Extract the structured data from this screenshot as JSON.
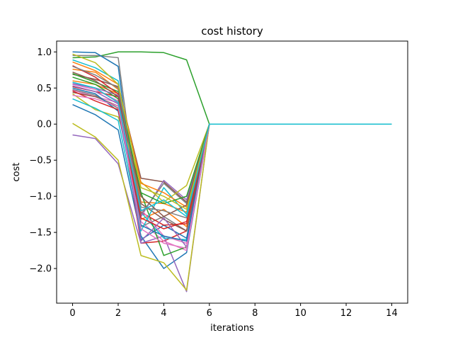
{
  "chart_data": {
    "type": "line",
    "title": "cost history",
    "xlabel": "iterations",
    "ylabel": "cost",
    "xlim": [
      -0.7,
      14.7
    ],
    "ylim": [
      -2.48,
      1.15
    ],
    "xticks": [
      0,
      2,
      4,
      6,
      8,
      10,
      12,
      14
    ],
    "xtick_labels": [
      "0",
      "2",
      "4",
      "6",
      "8",
      "10",
      "12",
      "14"
    ],
    "yticks": [
      -2.0,
      -1.5,
      -1.0,
      -0.5,
      0.0,
      0.5,
      1.0
    ],
    "ytick_labels": [
      "−2.0",
      "−1.5",
      "−1.0",
      "−0.5",
      "0.0",
      "0.5",
      "1.0"
    ],
    "grid": false,
    "legend": "none",
    "x": [
      0,
      1,
      2,
      3,
      4,
      5,
      6,
      7,
      8,
      9,
      10,
      11,
      12,
      13,
      14
    ],
    "series": [
      {
        "color": "#1f77b4",
        "values": [
          0.27,
          0.13,
          -0.08,
          -1.55,
          -2.0,
          -1.78,
          0,
          0,
          0,
          0,
          0,
          0,
          0,
          0,
          0
        ]
      },
      {
        "color": "#ff7f0e",
        "values": [
          0.76,
          0.72,
          0.48,
          -1.32,
          -1.18,
          -1.42,
          0,
          0,
          0,
          0,
          0,
          0,
          0,
          0,
          0
        ]
      },
      {
        "color": "#2ca02c",
        "values": [
          0.92,
          0.93,
          1.0,
          1.0,
          0.99,
          0.89,
          0,
          0,
          0,
          0,
          0,
          0,
          0,
          0,
          0
        ]
      },
      {
        "color": "#d62728",
        "values": [
          0.52,
          0.45,
          0.38,
          -1.65,
          -1.62,
          -1.48,
          0,
          0,
          0,
          0,
          0,
          0,
          0,
          0,
          0
        ]
      },
      {
        "color": "#9467bd",
        "values": [
          -0.15,
          -0.2,
          -0.55,
          -1.65,
          -1.55,
          -2.32,
          0,
          0,
          0,
          0,
          0,
          0,
          0,
          0,
          0
        ]
      },
      {
        "color": "#8c564b",
        "values": [
          0.69,
          0.62,
          0.52,
          -0.75,
          -0.8,
          -1.08,
          0,
          0,
          0,
          0,
          0,
          0,
          0,
          0,
          0
        ]
      },
      {
        "color": "#e377c2",
        "values": [
          0.47,
          0.38,
          0.3,
          -1.35,
          -1.62,
          -1.75,
          0,
          0,
          0,
          0,
          0,
          0,
          0,
          0,
          0
        ]
      },
      {
        "color": "#7f7f7f",
        "values": [
          0.95,
          0.95,
          0.92,
          -1.42,
          -1.28,
          -1.48,
          0,
          0,
          0,
          0,
          0,
          0,
          0,
          0,
          0
        ]
      },
      {
        "color": "#bcbd22",
        "values": [
          0.01,
          -0.18,
          -0.5,
          -1.82,
          -1.92,
          -2.3,
          0,
          0,
          0,
          0,
          0,
          0,
          0,
          0,
          0
        ]
      },
      {
        "color": "#17becf",
        "values": [
          0.89,
          0.78,
          0.6,
          -1.22,
          -1.58,
          -1.6,
          0,
          0,
          0,
          0,
          0,
          0,
          0,
          0,
          0
        ]
      },
      {
        "color": "#1f77b4",
        "values": [
          1.0,
          0.99,
          0.8,
          -1.6,
          -1.4,
          -1.58,
          0,
          0,
          0,
          0,
          0,
          0,
          0,
          0,
          0
        ]
      },
      {
        "color": "#ff7f0e",
        "values": [
          0.6,
          0.55,
          0.42,
          -1.08,
          -1.1,
          -1.22,
          0,
          0,
          0,
          0,
          0,
          0,
          0,
          0,
          0
        ]
      },
      {
        "color": "#2ca02c",
        "values": [
          0.7,
          0.58,
          0.45,
          -0.95,
          -1.82,
          -1.7,
          0,
          0,
          0,
          0,
          0,
          0,
          0,
          0,
          0
        ]
      },
      {
        "color": "#d62728",
        "values": [
          0.81,
          0.65,
          0.42,
          -1.22,
          -1.4,
          -1.38,
          0,
          0,
          0,
          0,
          0,
          0,
          0,
          0,
          0
        ]
      },
      {
        "color": "#9467bd",
        "values": [
          0.53,
          0.45,
          0.28,
          -1.28,
          -0.78,
          -1.05,
          0,
          0,
          0,
          0,
          0,
          0,
          0,
          0,
          0
        ]
      },
      {
        "color": "#8c564b",
        "values": [
          0.44,
          0.38,
          0.25,
          -1.1,
          -1.32,
          -1.48,
          0,
          0,
          0,
          0,
          0,
          0,
          0,
          0,
          0
        ]
      },
      {
        "color": "#e377c2",
        "values": [
          0.55,
          0.48,
          0.32,
          -1.18,
          -1.55,
          -1.65,
          0,
          0,
          0,
          0,
          0,
          0,
          0,
          0,
          0
        ]
      },
      {
        "color": "#7f7f7f",
        "values": [
          0.48,
          0.4,
          0.22,
          -1.25,
          -0.82,
          -1.1,
          0,
          0,
          0,
          0,
          0,
          0,
          0,
          0,
          0
        ]
      },
      {
        "color": "#bcbd22",
        "values": [
          0.42,
          0.2,
          0.1,
          -0.8,
          -1.08,
          -0.85,
          0,
          0,
          0,
          0,
          0,
          0,
          0,
          0,
          0
        ]
      },
      {
        "color": "#17becf",
        "values": [
          0.35,
          0.22,
          0.05,
          -1.48,
          -0.88,
          -1.25,
          0,
          0,
          0,
          0,
          0,
          0,
          0,
          0,
          0
        ]
      },
      {
        "color": "#1f77b4",
        "values": [
          0.5,
          0.42,
          0.18,
          -1.4,
          -1.55,
          -1.62,
          0,
          0,
          0,
          0,
          0,
          0,
          0,
          0,
          0
        ]
      },
      {
        "color": "#ff7f0e",
        "values": [
          0.86,
          0.74,
          0.55,
          -0.82,
          -0.95,
          -1.15,
          0,
          0,
          0,
          0,
          0,
          0,
          0,
          0,
          0
        ]
      },
      {
        "color": "#2ca02c",
        "values": [
          0.65,
          0.55,
          0.35,
          -0.95,
          -1.1,
          -1.0,
          0,
          0,
          0,
          0,
          0,
          0,
          0,
          0,
          0
        ]
      },
      {
        "color": "#d62728",
        "values": [
          0.46,
          0.32,
          0.2,
          -1.3,
          -1.45,
          -1.35,
          0,
          0,
          0,
          0,
          0,
          0,
          0,
          0,
          0
        ]
      },
      {
        "color": "#9467bd",
        "values": [
          0.56,
          0.5,
          0.4,
          -1.62,
          -1.3,
          -1.7,
          0,
          0,
          0,
          0,
          0,
          0,
          0,
          0,
          0
        ]
      },
      {
        "color": "#8c564b",
        "values": [
          0.72,
          0.6,
          0.38,
          -1.0,
          -1.28,
          -1.12,
          0,
          0,
          0,
          0,
          0,
          0,
          0,
          0,
          0
        ]
      },
      {
        "color": "#e377c2",
        "values": [
          0.4,
          0.35,
          0.25,
          -1.45,
          -1.65,
          -1.72,
          0,
          0,
          0,
          0,
          0,
          0,
          0,
          0,
          0
        ]
      },
      {
        "color": "#7f7f7f",
        "values": [
          0.8,
          0.68,
          0.5,
          -1.15,
          -1.2,
          -1.3,
          0,
          0,
          0,
          0,
          0,
          0,
          0,
          0,
          0
        ]
      },
      {
        "color": "#bcbd22",
        "values": [
          0.97,
          0.85,
          0.55,
          -0.88,
          -1.0,
          -1.18,
          0,
          0,
          0,
          0,
          0,
          0,
          0,
          0,
          0
        ]
      },
      {
        "color": "#17becf",
        "values": [
          0.58,
          0.5,
          0.3,
          -1.2,
          -1.05,
          -1.28,
          0,
          0,
          0,
          0,
          0,
          0,
          0,
          0,
          0
        ]
      }
    ]
  }
}
